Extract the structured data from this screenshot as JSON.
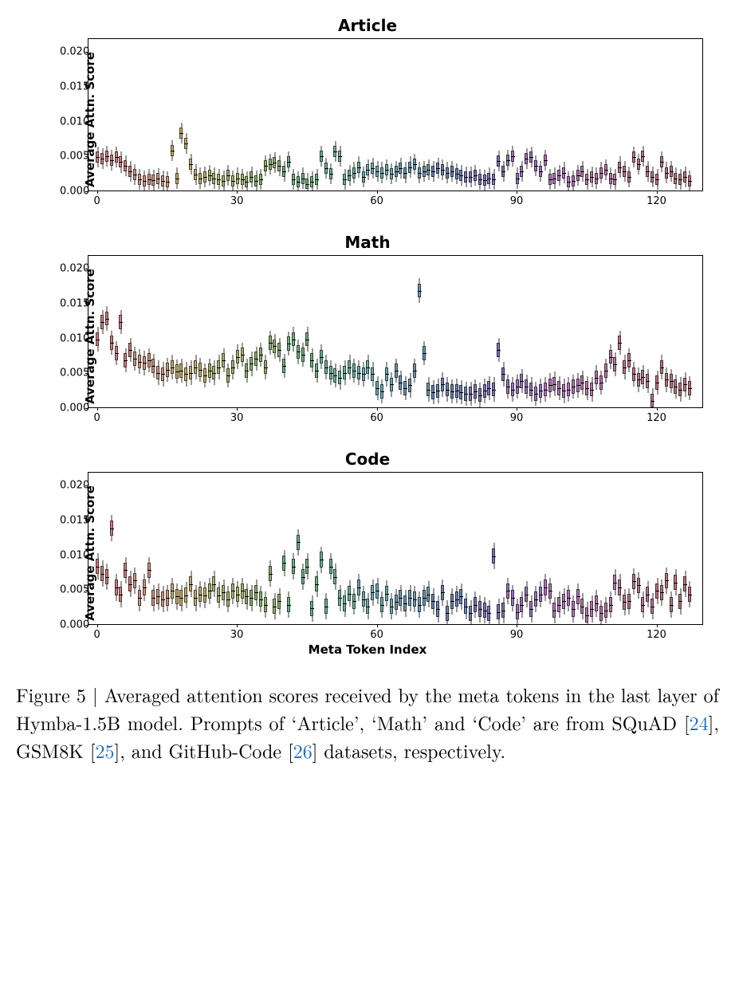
{
  "figure": {
    "panels": [
      {
        "id": "article",
        "title": "Article",
        "xlabel": ""
      },
      {
        "id": "math",
        "title": "Math",
        "xlabel": ""
      },
      {
        "id": "code",
        "title": "Code",
        "xlabel": "Meta Token Index"
      }
    ],
    "ylabel": "Average Attn. Score",
    "yticks": [
      0.0,
      0.005,
      0.01,
      0.015,
      0.02
    ],
    "ylim": [
      0,
      0.022
    ],
    "xticks": [
      0,
      30,
      60,
      90,
      120
    ],
    "xlim": [
      -2,
      130
    ],
    "n_boxes": 128,
    "palette": [
      "#c97b7b",
      "#c97b7b",
      "#c97b7b",
      "#c97b7b",
      "#c97b7b",
      "#c97b7b",
      "#c97b7b",
      "#c97b7b",
      "#c9917b",
      "#c9917b",
      "#c9917b",
      "#c9917b",
      "#c9917b",
      "#c9917b",
      "#c9917b",
      "#c9917b",
      "#bda86b",
      "#bda86b",
      "#bda86b",
      "#bda86b",
      "#bda86b",
      "#bda86b",
      "#bda86b",
      "#bda86b",
      "#a6ad6b",
      "#a6ad6b",
      "#a6ad6b",
      "#a6ad6b",
      "#a6ad6b",
      "#a6ad6b",
      "#a6ad6b",
      "#a6ad6b",
      "#8aad6b",
      "#8aad6b",
      "#8aad6b",
      "#8aad6b",
      "#8aad6b",
      "#8aad6b",
      "#8aad6b",
      "#8aad6b",
      "#6bad7c",
      "#6bad7c",
      "#6bad7c",
      "#6bad7c",
      "#6bad7c",
      "#6bad7c",
      "#6bad7c",
      "#6bad7c",
      "#6bad9a",
      "#6bad9a",
      "#6bad9a",
      "#6bad9a",
      "#6bad9a",
      "#6bad9a",
      "#6bad9a",
      "#6bad9a",
      "#6ba8ad",
      "#6ba8ad",
      "#6ba8ad",
      "#6ba8ad",
      "#6ba8ad",
      "#6ba8ad",
      "#6ba8ad",
      "#6ba8ad",
      "#6b94ad",
      "#6b94ad",
      "#6b94ad",
      "#6b94ad",
      "#6b94ad",
      "#6b94ad",
      "#6b94ad",
      "#6b94ad",
      "#6b80ad",
      "#6b80ad",
      "#6b80ad",
      "#6b80ad",
      "#6b80ad",
      "#6b80ad",
      "#6b80ad",
      "#6b80ad",
      "#7b73b5",
      "#7b73b5",
      "#7b73b5",
      "#7b73b5",
      "#7b73b5",
      "#7b73b5",
      "#7b73b5",
      "#7b73b5",
      "#9773b5",
      "#9773b5",
      "#9773b5",
      "#9773b5",
      "#9773b5",
      "#9773b5",
      "#9773b5",
      "#9773b5",
      "#b073b5",
      "#b073b5",
      "#b073b5",
      "#b073b5",
      "#b073b5",
      "#b073b5",
      "#b073b5",
      "#b073b5",
      "#b573a4",
      "#b573a4",
      "#b573a4",
      "#b573a4",
      "#b573a4",
      "#b573a4",
      "#b573a4",
      "#b573a4",
      "#b5738e",
      "#b5738e",
      "#b5738e",
      "#b5738e",
      "#b5738e",
      "#b5738e",
      "#b5738e",
      "#b5738e",
      "#b5737b",
      "#b5737b",
      "#b5737b",
      "#b5737b",
      "#b5737b",
      "#b5737b",
      "#b5737b",
      "#b5737b"
    ],
    "series": {
      "article": {
        "medians": [
          0.005,
          0.0048,
          0.0052,
          0.0046,
          0.005,
          0.0043,
          0.0038,
          0.003,
          0.0025,
          0.0018,
          0.0016,
          0.0018,
          0.0017,
          0.0019,
          0.0016,
          0.0015,
          0.006,
          0.002,
          0.0085,
          0.007,
          0.004,
          0.0025,
          0.002,
          0.0022,
          0.0024,
          0.002,
          0.0018,
          0.0016,
          0.0024,
          0.0016,
          0.002,
          0.0018,
          0.0015,
          0.0022,
          0.0016,
          0.0018,
          0.0038,
          0.004,
          0.0042,
          0.0038,
          0.003,
          0.0044,
          0.0018,
          0.0015,
          0.002,
          0.0012,
          0.0015,
          0.0018,
          0.0052,
          0.0034,
          0.0026,
          0.0058,
          0.0052,
          0.0018,
          0.0024,
          0.0028,
          0.0036,
          0.0022,
          0.0032,
          0.0034,
          0.003,
          0.0028,
          0.0032,
          0.0026,
          0.003,
          0.0034,
          0.0028,
          0.0036,
          0.004,
          0.0028,
          0.003,
          0.0032,
          0.003,
          0.0034,
          0.0032,
          0.0028,
          0.003,
          0.0026,
          0.0024,
          0.0022,
          0.0022,
          0.0024,
          0.0018,
          0.0017,
          0.002,
          0.0018,
          0.0045,
          0.003,
          0.0046,
          0.0052,
          0.002,
          0.003,
          0.0048,
          0.005,
          0.0038,
          0.003,
          0.0046,
          0.0018,
          0.002,
          0.0024,
          0.0028,
          0.0015,
          0.0016,
          0.0024,
          0.003,
          0.0018,
          0.0022,
          0.002,
          0.0028,
          0.0032,
          0.002,
          0.0018,
          0.0036,
          0.003,
          0.0022,
          0.005,
          0.004,
          0.0052,
          0.003,
          0.0022,
          0.0018,
          0.0044,
          0.0028,
          0.003,
          0.002,
          0.0018,
          0.0022,
          0.0016
        ],
        "iqr": 0.0016,
        "whisker": 0.003
      },
      "math": {
        "medians": [
          0.01,
          0.0125,
          0.013,
          0.0095,
          0.008,
          0.0125,
          0.007,
          0.0085,
          0.0072,
          0.0068,
          0.0066,
          0.007,
          0.0062,
          0.0052,
          0.005,
          0.0056,
          0.006,
          0.0054,
          0.0055,
          0.005,
          0.0052,
          0.006,
          0.0056,
          0.0048,
          0.0055,
          0.0052,
          0.006,
          0.007,
          0.0048,
          0.006,
          0.0075,
          0.0078,
          0.0055,
          0.0065,
          0.0072,
          0.0078,
          0.006,
          0.0095,
          0.009,
          0.0085,
          0.0062,
          0.0094,
          0.01,
          0.0082,
          0.0078,
          0.01,
          0.007,
          0.0055,
          0.0075,
          0.006,
          0.0052,
          0.0048,
          0.0045,
          0.0052,
          0.006,
          0.0055,
          0.0052,
          0.005,
          0.006,
          0.005,
          0.003,
          0.0025,
          0.005,
          0.0035,
          0.0055,
          0.0038,
          0.003,
          0.0034,
          0.0055,
          0.017,
          0.008,
          0.0028,
          0.0024,
          0.0026,
          0.0035,
          0.0028,
          0.0025,
          0.0026,
          0.0024,
          0.0022,
          0.0022,
          0.0025,
          0.002,
          0.0026,
          0.003,
          0.0028,
          0.0085,
          0.005,
          0.0032,
          0.0028,
          0.0032,
          0.004,
          0.0032,
          0.0028,
          0.0022,
          0.0026,
          0.0028,
          0.0034,
          0.0036,
          0.003,
          0.0026,
          0.0028,
          0.0032,
          0.0034,
          0.0038,
          0.003,
          0.0028,
          0.0045,
          0.0038,
          0.0055,
          0.0075,
          0.0064,
          0.0095,
          0.006,
          0.007,
          0.005,
          0.0042,
          0.0046,
          0.004,
          0.0012,
          0.0038,
          0.006,
          0.0042,
          0.004,
          0.0032,
          0.0028,
          0.0035,
          0.003
        ],
        "iqr": 0.002,
        "whisker": 0.0035
      },
      "code": {
        "medians": [
          0.0085,
          0.0075,
          0.007,
          0.014,
          0.0055,
          0.0045,
          0.008,
          0.006,
          0.0065,
          0.004,
          0.0055,
          0.008,
          0.004,
          0.0042,
          0.0038,
          0.004,
          0.005,
          0.0042,
          0.004,
          0.0044,
          0.006,
          0.004,
          0.0045,
          0.0044,
          0.005,
          0.006,
          0.0044,
          0.0048,
          0.0038,
          0.005,
          0.0045,
          0.005,
          0.0042,
          0.004,
          0.0048,
          0.0038,
          0.003,
          0.0075,
          0.0028,
          0.0035,
          0.009,
          0.003,
          0.0085,
          0.012,
          0.007,
          0.0085,
          0.0025,
          0.006,
          0.0095,
          0.0028,
          0.0085,
          0.007,
          0.004,
          0.0032,
          0.0046,
          0.0035,
          0.0055,
          0.0038,
          0.0028,
          0.0048,
          0.005,
          0.003,
          0.0046,
          0.0028,
          0.0034,
          0.004,
          0.0032,
          0.004,
          0.0038,
          0.003,
          0.004,
          0.0045,
          0.0035,
          0.0024,
          0.0048,
          0.0018,
          0.0035,
          0.0038,
          0.0042,
          0.0028,
          0.0018,
          0.003,
          0.0024,
          0.0022,
          0.0018,
          0.01,
          0.002,
          0.0022,
          0.005,
          0.004,
          0.002,
          0.003,
          0.0045,
          0.0024,
          0.0038,
          0.0045,
          0.0055,
          0.005,
          0.0022,
          0.003,
          0.0035,
          0.004,
          0.0024,
          0.0042,
          0.0028,
          0.0015,
          0.0024,
          0.0032,
          0.0018,
          0.0022,
          0.003,
          0.0062,
          0.0055,
          0.0034,
          0.0035,
          0.0064,
          0.0058,
          0.003,
          0.0045,
          0.0028,
          0.005,
          0.0048,
          0.0065,
          0.003,
          0.0062,
          0.0035,
          0.006,
          0.0045
        ],
        "iqr": 0.0022,
        "whisker": 0.0038
      }
    },
    "title_fontsize": 20,
    "label_fontsize": 15,
    "tick_fontsize": 13,
    "background_color": "#ffffff",
    "box_border_color": "rgba(0,0,0,0.6)",
    "whisker_color": "#333333"
  },
  "caption": {
    "prefix": "Figure 5 | ",
    "body1": "Averaged attention scores received by the meta tokens in the last layer of Hymba-1.5B model. Prompts of ‘Article’, ‘Math’ and ‘Code’ are from SQuAD [",
    "ref1": "24",
    "body2": "], GSM8K [",
    "ref2": "25",
    "body3": "], and GitHub-Code [",
    "ref3": "26",
    "body4": "] datasets, respectively."
  }
}
